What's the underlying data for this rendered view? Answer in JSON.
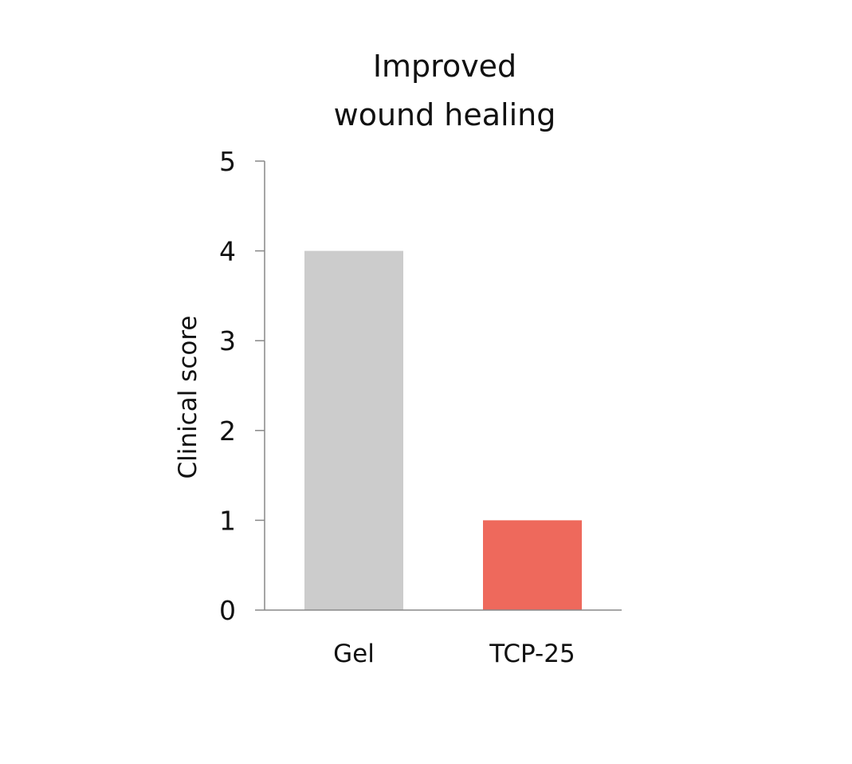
{
  "chart_data": {
    "type": "bar",
    "title": [
      "Improved",
      "wound healing"
    ],
    "ylabel": "Clinical score",
    "xlabel": "",
    "categories": [
      "Gel",
      "TCP-25"
    ],
    "values": [
      4,
      1
    ],
    "bar_colors": [
      "#cccccc",
      "#ee695c"
    ],
    "axis_color": "#888888",
    "ylim": [
      0,
      5
    ],
    "yticks": [
      0,
      1,
      2,
      3,
      4,
      5
    ],
    "grid": false,
    "legend": "none"
  }
}
